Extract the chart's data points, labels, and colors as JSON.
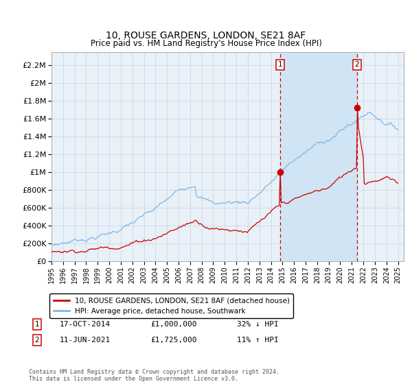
{
  "title": "10, ROUSE GARDENS, LONDON, SE21 8AF",
  "subtitle": "Price paid vs. HM Land Registry's House Price Index (HPI)",
  "ylabel_ticks": [
    "£0",
    "£200K",
    "£400K",
    "£600K",
    "£800K",
    "£1M",
    "£1.2M",
    "£1.4M",
    "£1.6M",
    "£1.8M",
    "£2M",
    "£2.2M"
  ],
  "ytick_values": [
    0,
    200000,
    400000,
    600000,
    800000,
    1000000,
    1200000,
    1400000,
    1600000,
    1800000,
    2000000,
    2200000
  ],
  "ylim": [
    0,
    2350000
  ],
  "xlim_start": 1995.0,
  "xlim_end": 2025.5,
  "hpi_color": "#7ab8e8",
  "price_color": "#cc0000",
  "background_color": "#e8f0f8",
  "shade_color": "#d0e4f4",
  "marker1_x": 2014.8,
  "marker1_y": 1000000,
  "marker2_x": 2021.45,
  "marker2_y": 1725000,
  "marker1_label": "17-OCT-2014",
  "marker1_price": "£1,000,000",
  "marker1_note": "32% ↓ HPI",
  "marker2_label": "11-JUN-2021",
  "marker2_price": "£1,725,000",
  "marker2_note": "11% ↑ HPI",
  "legend_line1": "10, ROUSE GARDENS, LONDON, SE21 8AF (detached house)",
  "legend_line2": "HPI: Average price, detached house, Southwark",
  "footer": "Contains HM Land Registry data © Crown copyright and database right 2024.\nThis data is licensed under the Open Government Licence v3.0.",
  "xtick_years": [
    1995,
    1996,
    1997,
    1998,
    1999,
    2000,
    2001,
    2002,
    2003,
    2004,
    2005,
    2006,
    2007,
    2008,
    2009,
    2010,
    2011,
    2012,
    2013,
    2014,
    2015,
    2016,
    2017,
    2018,
    2019,
    2020,
    2021,
    2022,
    2023,
    2024,
    2025
  ]
}
